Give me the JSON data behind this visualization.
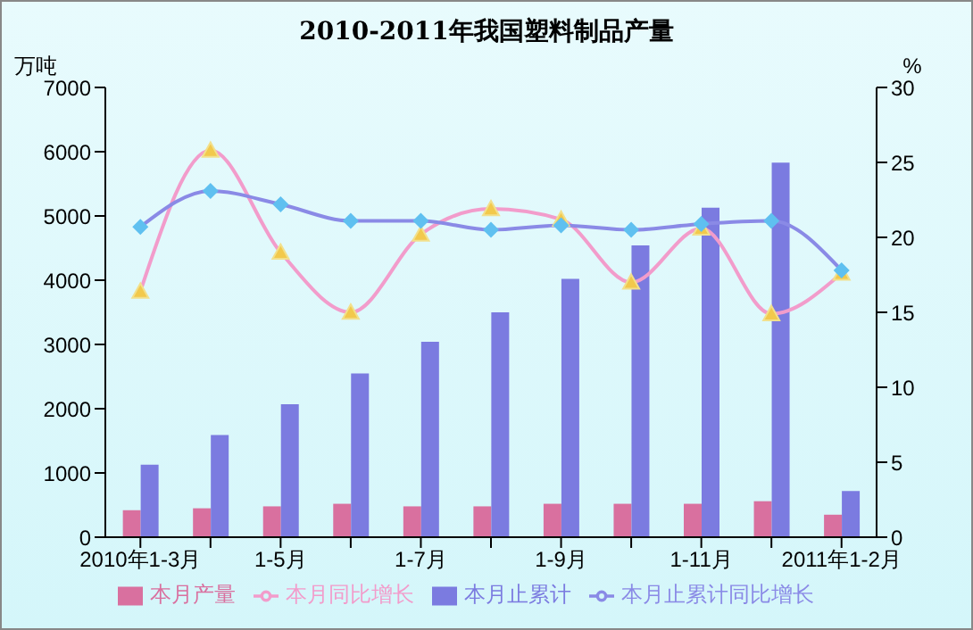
{
  "chart_data": {
    "type": "bar",
    "title": "2010-2011年我国塑料制品产量",
    "ylabel": "万吨",
    "y2label": "%",
    "categories": [
      "2010年1-3月",
      null,
      "1-5月",
      null,
      "1-7月",
      null,
      "1-9月",
      null,
      "1-11月",
      null,
      "2011年1-2月"
    ],
    "series": [
      {
        "name": "本月产量",
        "color": "#d9709f",
        "values": [
          420,
          450,
          480,
          520,
          480,
          480,
          520,
          520,
          520,
          560,
          350
        ]
      },
      {
        "name": "本月止累计",
        "color": "#7b7be0",
        "values": [
          1130,
          1590,
          2070,
          2550,
          3040,
          3500,
          4020,
          4540,
          5130,
          5830,
          720
        ]
      },
      {
        "name": "本月同比增长",
        "type": "line",
        "axis": "y2",
        "color": "#f29ccb",
        "marker": "triangle",
        "values": [
          16.4,
          25.8,
          19,
          15,
          20.2,
          21.9,
          21.2,
          17,
          20.6,
          14.9,
          17.6
        ]
      },
      {
        "name": "本月止累计同比增长",
        "type": "line",
        "axis": "y2",
        "color": "#8a8ae6",
        "marker": "diamond",
        "values": [
          20.7,
          23.1,
          22.2,
          21.1,
          21.1,
          20.5,
          20.8,
          20.5,
          20.9,
          21.1,
          17.8
        ]
      }
    ],
    "ylim": [
      0,
      7000
    ],
    "yticks": [
      0,
      1000,
      2000,
      3000,
      4000,
      5000,
      6000,
      7000
    ],
    "y2lim": [
      0,
      30
    ],
    "y2ticks": [
      0,
      5,
      10,
      15,
      20,
      25,
      30
    ],
    "grid": false,
    "legend": "bottom"
  }
}
